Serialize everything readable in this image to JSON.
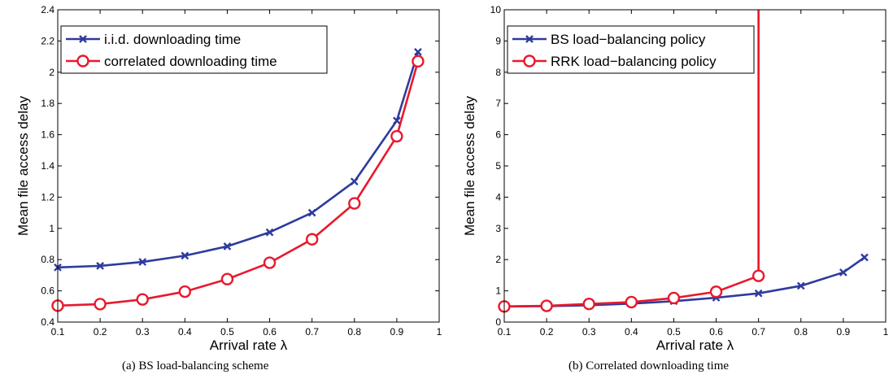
{
  "chart_data": [
    {
      "type": "line",
      "caption": "(a) BS load-balancing scheme",
      "xlabel": "Arrival rate λ",
      "ylabel": "Mean file access delay",
      "xlim": [
        0.1,
        1
      ],
      "ylim": [
        0.4,
        2.4
      ],
      "xticks": [
        "0.1",
        "0.2",
        "0.3",
        "0.4",
        "0.5",
        "0.6",
        "0.7",
        "0.8",
        "0.9",
        "1"
      ],
      "yticks": [
        "0.4",
        "0.6",
        "0.8",
        "1",
        "1.2",
        "1.4",
        "1.6",
        "1.8",
        "2",
        "2.2",
        "2.4"
      ],
      "legend_position": "top-left",
      "series": [
        {
          "name": "i.i.d. downloading time",
          "color": "#2e3b9e",
          "marker": "x",
          "x": [
            0.1,
            0.2,
            0.3,
            0.4,
            0.5,
            0.6,
            0.7,
            0.8,
            0.9,
            0.95
          ],
          "y": [
            0.75,
            0.76,
            0.785,
            0.825,
            0.885,
            0.975,
            1.1,
            1.3,
            1.69,
            2.13
          ]
        },
        {
          "name": "correlated downloading time",
          "color": "#e8192c",
          "marker": "o",
          "x": [
            0.1,
            0.2,
            0.3,
            0.4,
            0.5,
            0.6,
            0.7,
            0.8,
            0.9,
            0.95
          ],
          "y": [
            0.505,
            0.515,
            0.545,
            0.595,
            0.675,
            0.78,
            0.93,
            1.16,
            1.59,
            2.07
          ]
        }
      ]
    },
    {
      "type": "line",
      "caption": "(b) Correlated downloading time",
      "xlabel": "Arrival rate λ",
      "ylabel": "Mean file access delay",
      "xlim": [
        0.1,
        1
      ],
      "ylim": [
        0,
        10
      ],
      "xticks": [
        "0.1",
        "0.2",
        "0.3",
        "0.4",
        "0.5",
        "0.6",
        "0.7",
        "0.8",
        "0.9",
        "1"
      ],
      "yticks": [
        "0",
        "1",
        "2",
        "3",
        "4",
        "5",
        "6",
        "7",
        "8",
        "9",
        "10"
      ],
      "legend_position": "top-left",
      "series": [
        {
          "name": "BS load−balancing policy",
          "color": "#2e3b9e",
          "marker": "x",
          "x": [
            0.1,
            0.2,
            0.3,
            0.4,
            0.5,
            0.6,
            0.7,
            0.8,
            0.9,
            0.95
          ],
          "y": [
            0.5,
            0.51,
            0.54,
            0.59,
            0.67,
            0.78,
            0.92,
            1.16,
            1.59,
            2.07
          ]
        },
        {
          "name": "RRK load−balancing policy",
          "color": "#e8192c",
          "marker": "o",
          "x": [
            0.1,
            0.2,
            0.3,
            0.4,
            0.5,
            0.6,
            0.7
          ],
          "y": [
            0.5,
            0.52,
            0.58,
            0.64,
            0.77,
            0.97,
            1.48
          ],
          "tail": {
            "x": [
              0.7,
              0.7
            ],
            "y": [
              1.48,
              10
            ]
          }
        }
      ]
    }
  ]
}
